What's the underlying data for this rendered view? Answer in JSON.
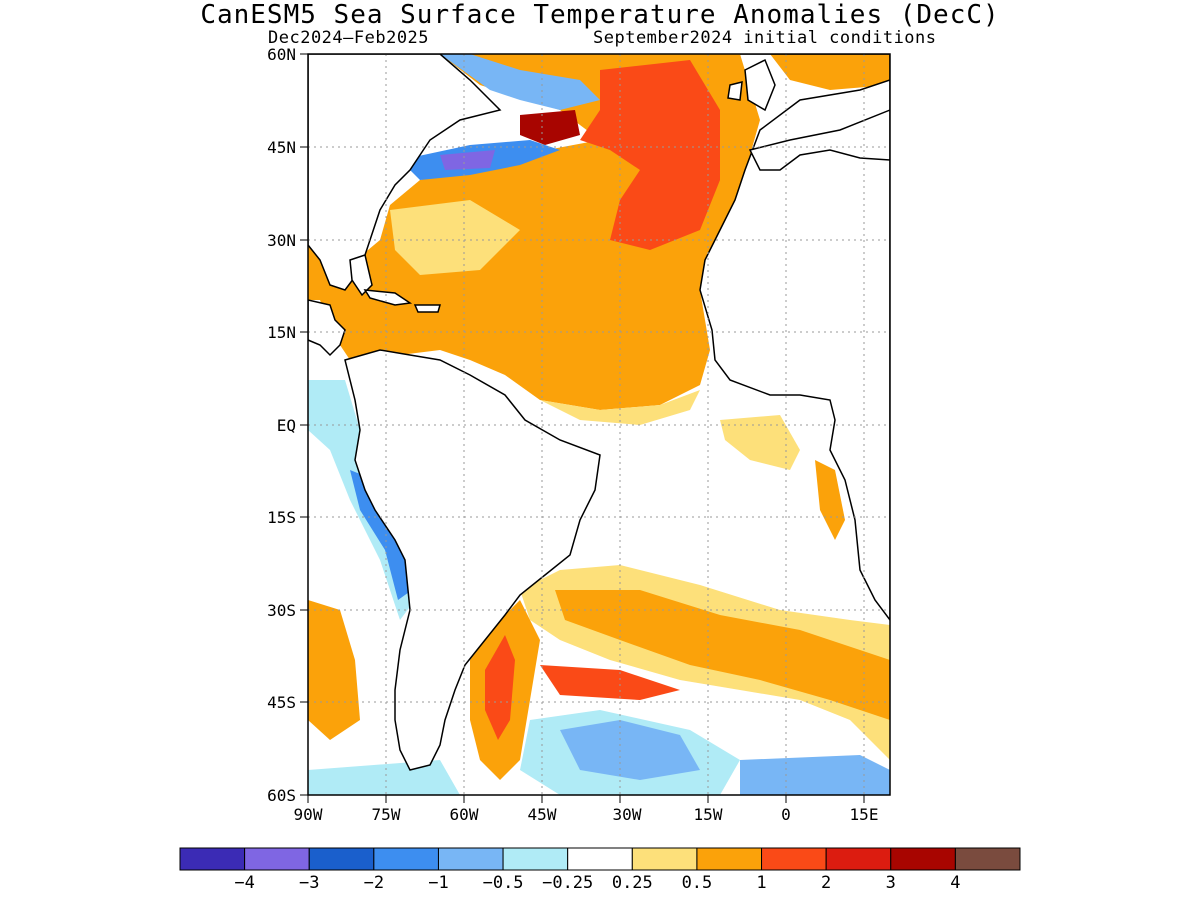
{
  "title": "CanESM5 Sea Surface Temperature Anomalies (DecC)",
  "subtitle_left": "Dec2024–Feb2025",
  "subtitle_right": "September2024 initial conditions",
  "map": {
    "region": "Atlantic Ocean",
    "lat_range": [
      -60,
      60
    ],
    "lon_range": [
      -90,
      22
    ],
    "lat_ticks": [
      "60N",
      "45N",
      "30N",
      "15N",
      "EQ",
      "15S",
      "30S",
      "45S",
      "60S"
    ],
    "lon_ticks": [
      "90W",
      "75W",
      "60W",
      "45W",
      "30W",
      "15W",
      "0",
      "15E"
    ]
  },
  "colorbar": {
    "labels": [
      "−4",
      "−3",
      "−2",
      "−1",
      "−0.5",
      "−0.25",
      "0.25",
      "0.5",
      "1",
      "2",
      "3",
      "4"
    ],
    "colors": [
      "#3b2bb5",
      "#7f66e3",
      "#1a5fcc",
      "#3d8ef0",
      "#78b6f5",
      "#b0ebf6",
      "#ffffff",
      "#fde07a",
      "#fba20a",
      "#fa4a17",
      "#dc1c10",
      "#a80500",
      "#7a4b3e"
    ]
  }
}
